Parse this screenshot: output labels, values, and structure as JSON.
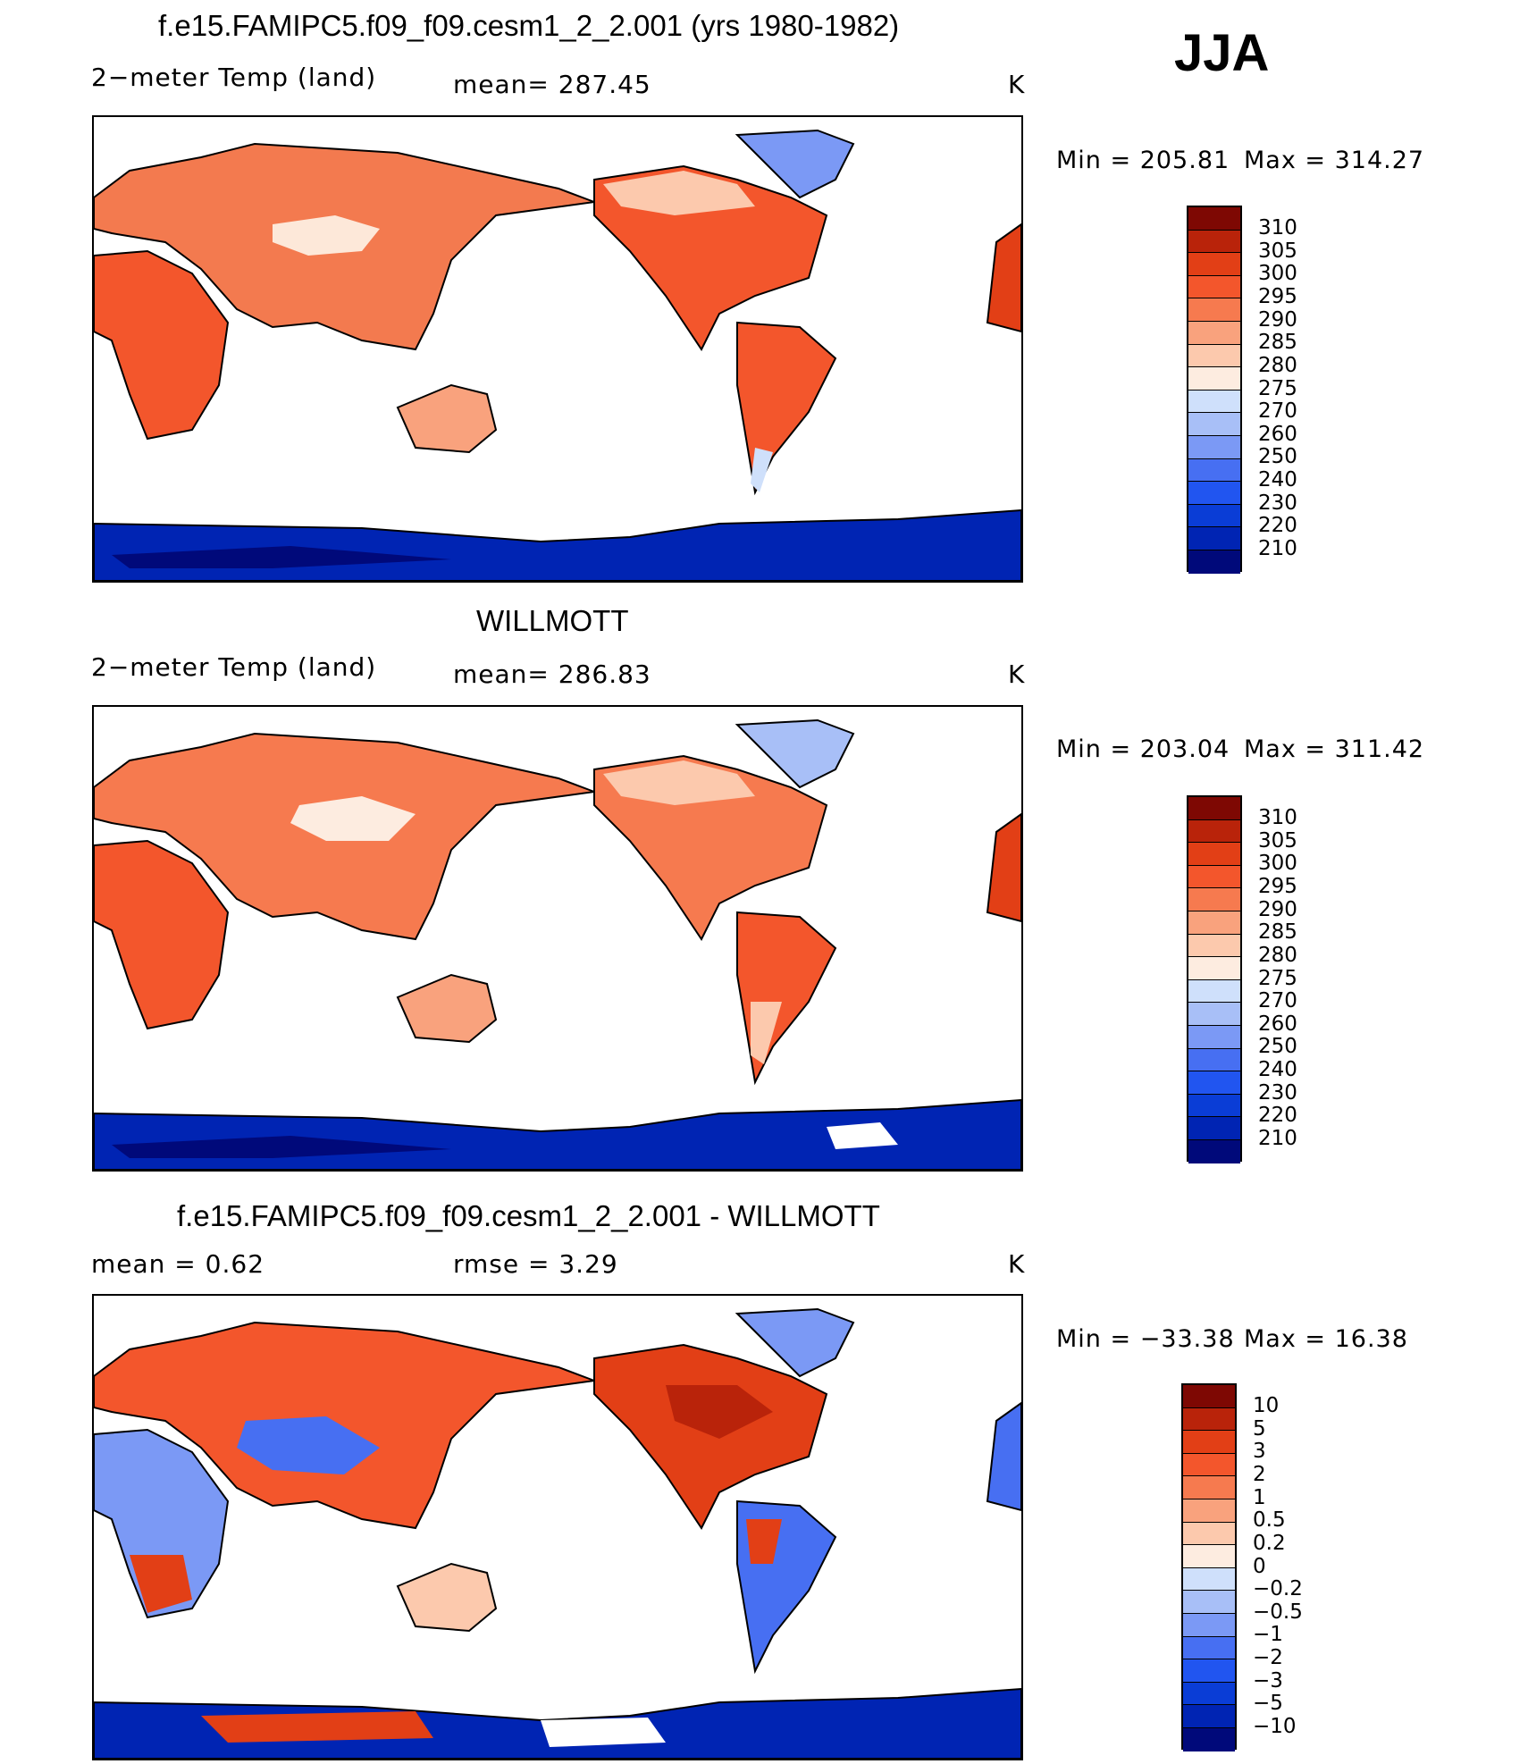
{
  "header": {
    "season": "JJA"
  },
  "colors": {
    "abs_scale": [
      "#00097a",
      "#0024b3",
      "#0a3dd6",
      "#2155f0",
      "#476ff2",
      "#7b99f5",
      "#a8bff7",
      "#cfe0fb",
      "#fdece0",
      "#fcc9ad",
      "#f9a27d",
      "#f67a4f",
      "#f3562c",
      "#e23f16",
      "#b9230a",
      "#7e0803"
    ],
    "diff_scale": [
      "#00097a",
      "#0024b3",
      "#0a3dd6",
      "#2155f0",
      "#476ff2",
      "#7b99f5",
      "#a8bff7",
      "#cfe0fb",
      "#fdece0",
      "#fcc9ad",
      "#f9a27d",
      "#f67a4f",
      "#f3562c",
      "#e23f16",
      "#b9230a",
      "#7e0803"
    ]
  },
  "chart_data": [
    {
      "type": "heatmap",
      "title": "f.e15.FAMIPC5.f09_f09.cesm1_2_2.001 (yrs 1980-1982)",
      "variable": "2−meter Temp (land)",
      "stat_text": "mean=  287.45",
      "units": "K",
      "min_label": "Min  =  205.81",
      "max_label": "Max  =  314.27",
      "stats": {
        "mean": 287.45,
        "min": 205.81,
        "max": 314.27
      },
      "colorbar_levels": [
        "210",
        "220",
        "230",
        "240",
        "250",
        "260",
        "270",
        "275",
        "280",
        "285",
        "290",
        "295",
        "300",
        "305",
        "310"
      ]
    },
    {
      "type": "heatmap",
      "title": "WILLMOTT",
      "variable": "2−meter Temp (land)",
      "stat_text": "mean=  286.83",
      "units": "K",
      "min_label": "Min  =  203.04",
      "max_label": "Max  =  311.42",
      "stats": {
        "mean": 286.83,
        "min": 203.04,
        "max": 311.42
      },
      "colorbar_levels": [
        "210",
        "220",
        "230",
        "240",
        "250",
        "260",
        "270",
        "275",
        "280",
        "285",
        "290",
        "295",
        "300",
        "305",
        "310"
      ]
    },
    {
      "type": "heatmap",
      "title": "f.e15.FAMIPC5.f09_f09.cesm1_2_2.001 - WILLMOTT",
      "variable": "mean  =      0.62",
      "stat_text": "rmse  =      3.29",
      "units": "K",
      "min_label": "Min  =  −33.38",
      "max_label": "Max  =     16.38",
      "stats": {
        "mean": 0.62,
        "rmse": 3.29,
        "min": -33.38,
        "max": 16.38
      },
      "colorbar_levels": [
        "−10",
        "−5",
        "−3",
        "−2",
        "−1",
        "−0.5",
        "−0.2",
        "0",
        "0.2",
        "0.5",
        "1",
        "2",
        "3",
        "5",
        "10"
      ]
    }
  ]
}
